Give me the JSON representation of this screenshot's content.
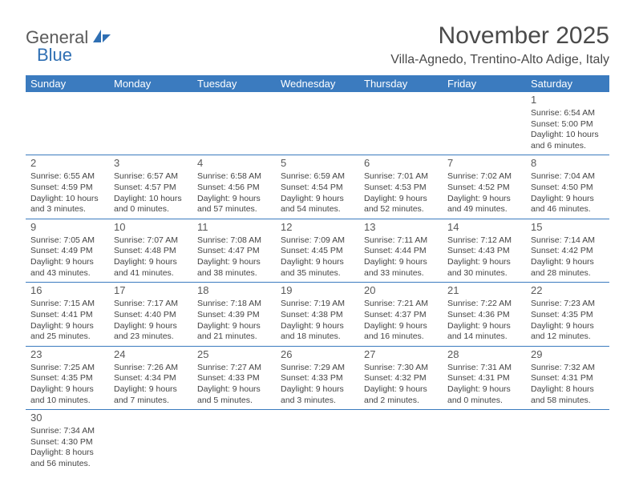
{
  "logo": {
    "general": "General",
    "blue": "Blue"
  },
  "header": {
    "title": "November 2025",
    "location": "Villa-Agnedo, Trentino-Alto Adige, Italy"
  },
  "style": {
    "header_bg": "#3b7bbf",
    "header_fg": "#ffffff",
    "row_border": "#3b7bbf",
    "title_fontsize": 30,
    "cell_fontsize": 10.5
  },
  "days_of_week": [
    "Sunday",
    "Monday",
    "Tuesday",
    "Wednesday",
    "Thursday",
    "Friday",
    "Saturday"
  ],
  "weeks": [
    [
      null,
      null,
      null,
      null,
      null,
      null,
      {
        "n": "1",
        "sr": "Sunrise: 6:54 AM",
        "ss": "Sunset: 5:00 PM",
        "d1": "Daylight: 10 hours",
        "d2": "and 6 minutes."
      }
    ],
    [
      {
        "n": "2",
        "sr": "Sunrise: 6:55 AM",
        "ss": "Sunset: 4:59 PM",
        "d1": "Daylight: 10 hours",
        "d2": "and 3 minutes."
      },
      {
        "n": "3",
        "sr": "Sunrise: 6:57 AM",
        "ss": "Sunset: 4:57 PM",
        "d1": "Daylight: 10 hours",
        "d2": "and 0 minutes."
      },
      {
        "n": "4",
        "sr": "Sunrise: 6:58 AM",
        "ss": "Sunset: 4:56 PM",
        "d1": "Daylight: 9 hours",
        "d2": "and 57 minutes."
      },
      {
        "n": "5",
        "sr": "Sunrise: 6:59 AM",
        "ss": "Sunset: 4:54 PM",
        "d1": "Daylight: 9 hours",
        "d2": "and 54 minutes."
      },
      {
        "n": "6",
        "sr": "Sunrise: 7:01 AM",
        "ss": "Sunset: 4:53 PM",
        "d1": "Daylight: 9 hours",
        "d2": "and 52 minutes."
      },
      {
        "n": "7",
        "sr": "Sunrise: 7:02 AM",
        "ss": "Sunset: 4:52 PM",
        "d1": "Daylight: 9 hours",
        "d2": "and 49 minutes."
      },
      {
        "n": "8",
        "sr": "Sunrise: 7:04 AM",
        "ss": "Sunset: 4:50 PM",
        "d1": "Daylight: 9 hours",
        "d2": "and 46 minutes."
      }
    ],
    [
      {
        "n": "9",
        "sr": "Sunrise: 7:05 AM",
        "ss": "Sunset: 4:49 PM",
        "d1": "Daylight: 9 hours",
        "d2": "and 43 minutes."
      },
      {
        "n": "10",
        "sr": "Sunrise: 7:07 AM",
        "ss": "Sunset: 4:48 PM",
        "d1": "Daylight: 9 hours",
        "d2": "and 41 minutes."
      },
      {
        "n": "11",
        "sr": "Sunrise: 7:08 AM",
        "ss": "Sunset: 4:47 PM",
        "d1": "Daylight: 9 hours",
        "d2": "and 38 minutes."
      },
      {
        "n": "12",
        "sr": "Sunrise: 7:09 AM",
        "ss": "Sunset: 4:45 PM",
        "d1": "Daylight: 9 hours",
        "d2": "and 35 minutes."
      },
      {
        "n": "13",
        "sr": "Sunrise: 7:11 AM",
        "ss": "Sunset: 4:44 PM",
        "d1": "Daylight: 9 hours",
        "d2": "and 33 minutes."
      },
      {
        "n": "14",
        "sr": "Sunrise: 7:12 AM",
        "ss": "Sunset: 4:43 PM",
        "d1": "Daylight: 9 hours",
        "d2": "and 30 minutes."
      },
      {
        "n": "15",
        "sr": "Sunrise: 7:14 AM",
        "ss": "Sunset: 4:42 PM",
        "d1": "Daylight: 9 hours",
        "d2": "and 28 minutes."
      }
    ],
    [
      {
        "n": "16",
        "sr": "Sunrise: 7:15 AM",
        "ss": "Sunset: 4:41 PM",
        "d1": "Daylight: 9 hours",
        "d2": "and 25 minutes."
      },
      {
        "n": "17",
        "sr": "Sunrise: 7:17 AM",
        "ss": "Sunset: 4:40 PM",
        "d1": "Daylight: 9 hours",
        "d2": "and 23 minutes."
      },
      {
        "n": "18",
        "sr": "Sunrise: 7:18 AM",
        "ss": "Sunset: 4:39 PM",
        "d1": "Daylight: 9 hours",
        "d2": "and 21 minutes."
      },
      {
        "n": "19",
        "sr": "Sunrise: 7:19 AM",
        "ss": "Sunset: 4:38 PM",
        "d1": "Daylight: 9 hours",
        "d2": "and 18 minutes."
      },
      {
        "n": "20",
        "sr": "Sunrise: 7:21 AM",
        "ss": "Sunset: 4:37 PM",
        "d1": "Daylight: 9 hours",
        "d2": "and 16 minutes."
      },
      {
        "n": "21",
        "sr": "Sunrise: 7:22 AM",
        "ss": "Sunset: 4:36 PM",
        "d1": "Daylight: 9 hours",
        "d2": "and 14 minutes."
      },
      {
        "n": "22",
        "sr": "Sunrise: 7:23 AM",
        "ss": "Sunset: 4:35 PM",
        "d1": "Daylight: 9 hours",
        "d2": "and 12 minutes."
      }
    ],
    [
      {
        "n": "23",
        "sr": "Sunrise: 7:25 AM",
        "ss": "Sunset: 4:35 PM",
        "d1": "Daylight: 9 hours",
        "d2": "and 10 minutes."
      },
      {
        "n": "24",
        "sr": "Sunrise: 7:26 AM",
        "ss": "Sunset: 4:34 PM",
        "d1": "Daylight: 9 hours",
        "d2": "and 7 minutes."
      },
      {
        "n": "25",
        "sr": "Sunrise: 7:27 AM",
        "ss": "Sunset: 4:33 PM",
        "d1": "Daylight: 9 hours",
        "d2": "and 5 minutes."
      },
      {
        "n": "26",
        "sr": "Sunrise: 7:29 AM",
        "ss": "Sunset: 4:33 PM",
        "d1": "Daylight: 9 hours",
        "d2": "and 3 minutes."
      },
      {
        "n": "27",
        "sr": "Sunrise: 7:30 AM",
        "ss": "Sunset: 4:32 PM",
        "d1": "Daylight: 9 hours",
        "d2": "and 2 minutes."
      },
      {
        "n": "28",
        "sr": "Sunrise: 7:31 AM",
        "ss": "Sunset: 4:31 PM",
        "d1": "Daylight: 9 hours",
        "d2": "and 0 minutes."
      },
      {
        "n": "29",
        "sr": "Sunrise: 7:32 AM",
        "ss": "Sunset: 4:31 PM",
        "d1": "Daylight: 8 hours",
        "d2": "and 58 minutes."
      }
    ],
    [
      {
        "n": "30",
        "sr": "Sunrise: 7:34 AM",
        "ss": "Sunset: 4:30 PM",
        "d1": "Daylight: 8 hours",
        "d2": "and 56 minutes."
      },
      null,
      null,
      null,
      null,
      null,
      null
    ]
  ]
}
